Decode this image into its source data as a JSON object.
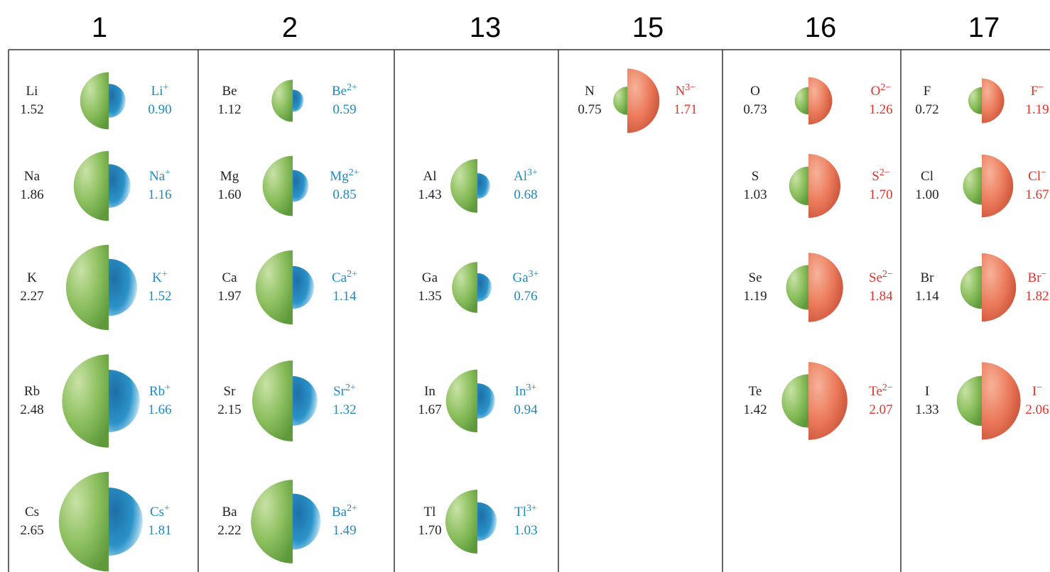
{
  "columns": [
    {
      "header": "1",
      "rows": [
        {
          "atom": "Li",
          "atom_radius": "1.52",
          "ion": "Li",
          "charge": "+",
          "ion_radius": "0.90"
        },
        {
          "atom": "Na",
          "atom_radius": "1.86",
          "ion": "Na",
          "charge": "+",
          "ion_radius": "1.16"
        },
        {
          "atom": "K",
          "atom_radius": "2.27",
          "ion": "K",
          "charge": "+",
          "ion_radius": "1.52"
        },
        {
          "atom": "Rb",
          "atom_radius": "2.48",
          "ion": "Rb",
          "charge": "+",
          "ion_radius": "1.66"
        },
        {
          "atom": "Cs",
          "atom_radius": "2.65",
          "ion": "Cs",
          "charge": "+",
          "ion_radius": "1.81"
        }
      ]
    },
    {
      "header": "2",
      "rows": [
        {
          "atom": "Be",
          "atom_radius": "1.12",
          "ion": "Be",
          "charge": "2+",
          "ion_radius": "0.59"
        },
        {
          "atom": "Mg",
          "atom_radius": "1.60",
          "ion": "Mg",
          "charge": "2+",
          "ion_radius": "0.85"
        },
        {
          "atom": "Ca",
          "atom_radius": "1.97",
          "ion": "Ca",
          "charge": "2+",
          "ion_radius": "1.14"
        },
        {
          "atom": "Sr",
          "atom_radius": "2.15",
          "ion": "Sr",
          "charge": "2+",
          "ion_radius": "1.32"
        },
        {
          "atom": "Ba",
          "atom_radius": "2.22",
          "ion": "Ba",
          "charge": "2+",
          "ion_radius": "1.49"
        }
      ]
    },
    {
      "header": "13",
      "rows": [
        null,
        {
          "atom": "Al",
          "atom_radius": "1.43",
          "ion": "Al",
          "charge": "3+",
          "ion_radius": "0.68"
        },
        {
          "atom": "Ga",
          "atom_radius": "1.35",
          "ion": "Ga",
          "charge": "3+",
          "ion_radius": "0.76"
        },
        {
          "atom": "In",
          "atom_radius": "1.67",
          "ion": "In",
          "charge": "3+",
          "ion_radius": "0.94"
        },
        {
          "atom": "Tl",
          "atom_radius": "1.70",
          "ion": "Tl",
          "charge": "3+",
          "ion_radius": "1.03"
        }
      ]
    },
    {
      "header": "15",
      "rows": [
        {
          "atom": "N",
          "atom_radius": "0.75",
          "ion": "N",
          "charge": "3−",
          "ion_radius": "1.71"
        }
      ]
    },
    {
      "header": "16",
      "rows": [
        {
          "atom": "O",
          "atom_radius": "0.73",
          "ion": "O",
          "charge": "2−",
          "ion_radius": "1.26"
        },
        {
          "atom": "S",
          "atom_radius": "1.03",
          "ion": "S",
          "charge": "2−",
          "ion_radius": "1.70"
        },
        {
          "atom": "Se",
          "atom_radius": "1.19",
          "ion": "Se",
          "charge": "2−",
          "ion_radius": "1.84"
        },
        {
          "atom": "Te",
          "atom_radius": "1.42",
          "ion": "Te",
          "charge": "2−",
          "ion_radius": "2.07"
        }
      ]
    },
    {
      "header": "17",
      "rows": [
        {
          "atom": "F",
          "atom_radius": "0.72",
          "ion": "F",
          "charge": "−",
          "ion_radius": "1.19"
        },
        {
          "atom": "Cl",
          "atom_radius": "1.00",
          "ion": "Cl",
          "charge": "−",
          "ion_radius": "1.67"
        },
        {
          "atom": "Br",
          "atom_radius": "1.14",
          "ion": "Br",
          "charge": "−",
          "ion_radius": "1.82"
        },
        {
          "atom": "I",
          "atom_radius": "1.33",
          "ion": "I",
          "charge": "−",
          "ion_radius": "2.06"
        }
      ]
    }
  ]
}
